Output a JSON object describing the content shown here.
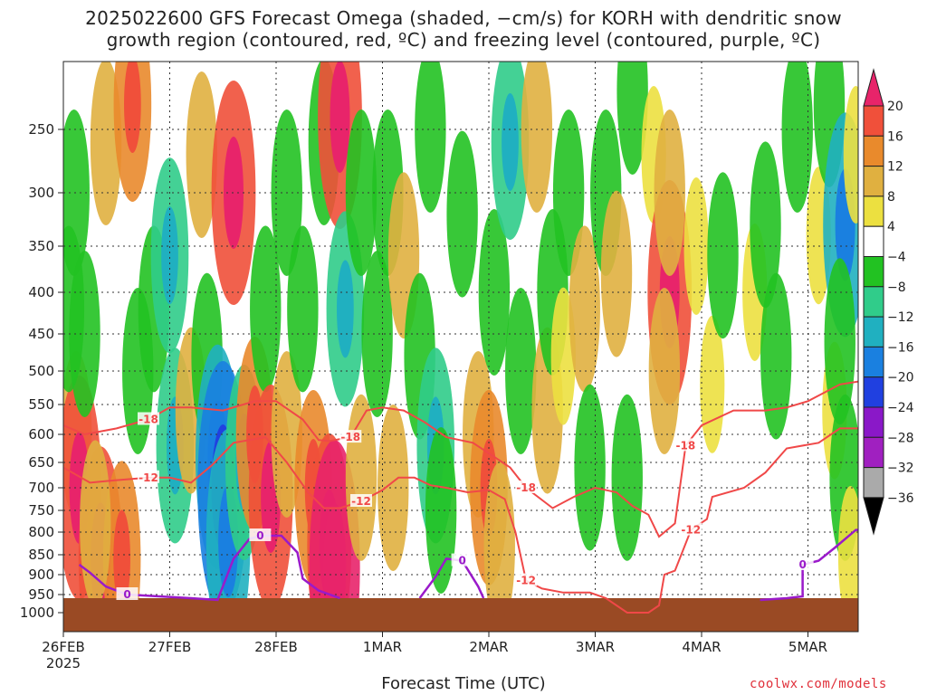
{
  "title_line1": "2025022600 GFS Forecast Omega (shaded, −cm/s) for KORH with dendritic snow",
  "title_line2": "growth region (contoured, red, ºC) and freezing level (contoured, purple, ºC)",
  "xlabel": "Forecast Time (UTC)",
  "brand": "coolwx.com/models",
  "chart_data": {
    "type": "heatmap",
    "x_axis": {
      "ticks": [
        "26FEB",
        "27FEB",
        "28FEB",
        "1MAR",
        "2MAR",
        "3MAR",
        "4MAR",
        "5MAR"
      ],
      "tick_days": [
        0,
        1,
        2,
        3,
        4,
        5,
        6,
        7
      ],
      "year_label": "2025",
      "range_days": [
        0,
        7.5
      ]
    },
    "y_axis": {
      "ticks": [
        250,
        300,
        350,
        400,
        450,
        500,
        550,
        600,
        650,
        700,
        750,
        800,
        850,
        900,
        950,
        1000
      ],
      "range_hpa": [
        200,
        1025
      ],
      "inverted": true
    },
    "grid": true,
    "colorbar": {
      "levels": [
        20,
        16,
        12,
        8,
        4,
        -4,
        -8,
        -12,
        -16,
        -20,
        -24,
        -28,
        -32,
        -36
      ],
      "colors": [
        "#e8246a",
        "#f0503a",
        "#e98a2c",
        "#e0b040",
        "#ece040",
        "#ffffff",
        "#22c222",
        "#30cc8a",
        "#20b0c0",
        "#1a80e0",
        "#2040e0",
        "#8a18c8",
        "#a020c0",
        "#aaaaaa",
        "#000000"
      ]
    },
    "omega_cells": [
      {
        "day": 0.12,
        "p": 600,
        "v": 8
      },
      {
        "day": 0.15,
        "p": 700,
        "v": 16
      },
      {
        "day": 0.35,
        "p": 860,
        "v": 16
      },
      {
        "day": 0.55,
        "p": 860,
        "v": 12
      },
      {
        "day": 0.3,
        "p": 780,
        "v": 8
      },
      {
        "day": 0.05,
        "p": 420,
        "v": -8
      },
      {
        "day": 0.1,
        "p": 300,
        "v": -8
      },
      {
        "day": 0.2,
        "p": 450,
        "v": -8
      },
      {
        "day": 0.4,
        "p": 260,
        "v": 8
      },
      {
        "day": 0.65,
        "p": 230,
        "v": 12
      },
      {
        "day": 0.7,
        "p": 500,
        "v": -8
      },
      {
        "day": 0.85,
        "p": 420,
        "v": -8
      },
      {
        "day": 1.0,
        "p": 360,
        "v": -12
      },
      {
        "day": 1.05,
        "p": 620,
        "v": -12
      },
      {
        "day": 1.2,
        "p": 560,
        "v": 8
      },
      {
        "day": 1.3,
        "p": 270,
        "v": 8
      },
      {
        "day": 1.35,
        "p": 480,
        "v": -8
      },
      {
        "day": 1.45,
        "p": 640,
        "v": -16
      },
      {
        "day": 1.5,
        "p": 700,
        "v": -20
      },
      {
        "day": 1.6,
        "p": 300,
        "v": 16
      },
      {
        "day": 1.55,
        "p": 820,
        "v": -16
      },
      {
        "day": 1.7,
        "p": 650,
        "v": -12
      },
      {
        "day": 1.8,
        "p": 600,
        "v": 12
      },
      {
        "day": 1.9,
        "p": 420,
        "v": -8
      },
      {
        "day": 1.95,
        "p": 720,
        "v": 16
      },
      {
        "day": 2.1,
        "p": 600,
        "v": 8
      },
      {
        "day": 2.1,
        "p": 300,
        "v": -8
      },
      {
        "day": 2.25,
        "p": 420,
        "v": -8
      },
      {
        "day": 2.35,
        "p": 700,
        "v": 12
      },
      {
        "day": 2.45,
        "p": 260,
        "v": -8
      },
      {
        "day": 2.5,
        "p": 830,
        "v": 16
      },
      {
        "day": 2.55,
        "p": 880,
        "v": 20
      },
      {
        "day": 2.6,
        "p": 240,
        "v": 16
      },
      {
        "day": 2.65,
        "p": 420,
        "v": -12
      },
      {
        "day": 2.8,
        "p": 300,
        "v": -8
      },
      {
        "day": 2.8,
        "p": 680,
        "v": 8
      },
      {
        "day": 2.95,
        "p": 450,
        "v": -8
      },
      {
        "day": 3.05,
        "p": 300,
        "v": -8
      },
      {
        "day": 3.1,
        "p": 700,
        "v": 8
      },
      {
        "day": 3.2,
        "p": 360,
        "v": 8
      },
      {
        "day": 3.35,
        "p": 480,
        "v": -8
      },
      {
        "day": 3.45,
        "p": 250,
        "v": -8
      },
      {
        "day": 3.5,
        "p": 620,
        "v": -12
      },
      {
        "day": 3.55,
        "p": 750,
        "v": -8
      },
      {
        "day": 3.75,
        "p": 320,
        "v": -8
      },
      {
        "day": 3.9,
        "p": 600,
        "v": 8
      },
      {
        "day": 4.0,
        "p": 700,
        "v": 12
      },
      {
        "day": 4.05,
        "p": 400,
        "v": -8
      },
      {
        "day": 4.1,
        "p": 830,
        "v": 8
      },
      {
        "day": 4.2,
        "p": 260,
        "v": -12
      },
      {
        "day": 4.3,
        "p": 500,
        "v": -8
      },
      {
        "day": 4.45,
        "p": 250,
        "v": 8
      },
      {
        "day": 4.55,
        "p": 560,
        "v": 8
      },
      {
        "day": 4.6,
        "p": 400,
        "v": -8
      },
      {
        "day": 4.75,
        "p": 300,
        "v": -8
      },
      {
        "day": 4.7,
        "p": 480,
        "v": 4
      },
      {
        "day": 4.9,
        "p": 420,
        "v": 8
      },
      {
        "day": 4.95,
        "p": 660,
        "v": -8
      },
      {
        "day": 5.1,
        "p": 300,
        "v": -8
      },
      {
        "day": 5.2,
        "p": 380,
        "v": 8
      },
      {
        "day": 5.3,
        "p": 680,
        "v": -8
      },
      {
        "day": 5.35,
        "p": 220,
        "v": -8
      },
      {
        "day": 5.55,
        "p": 270,
        "v": 4
      },
      {
        "day": 5.7,
        "p": 400,
        "v": 16
      },
      {
        "day": 5.7,
        "p": 300,
        "v": 8
      },
      {
        "day": 5.65,
        "p": 500,
        "v": 8
      },
      {
        "day": 5.95,
        "p": 350,
        "v": 4
      },
      {
        "day": 6.1,
        "p": 520,
        "v": 4
      },
      {
        "day": 6.2,
        "p": 360,
        "v": -8
      },
      {
        "day": 6.5,
        "p": 400,
        "v": 4
      },
      {
        "day": 6.6,
        "p": 330,
        "v": -8
      },
      {
        "day": 6.7,
        "p": 480,
        "v": -8
      },
      {
        "day": 6.9,
        "p": 250,
        "v": -8
      },
      {
        "day": 7.1,
        "p": 340,
        "v": 4
      },
      {
        "day": 7.2,
        "p": 230,
        "v": -8
      },
      {
        "day": 7.25,
        "p": 560,
        "v": 4
      },
      {
        "day": 7.35,
        "p": 330,
        "v": -16
      },
      {
        "day": 7.35,
        "p": 680,
        "v": -8
      },
      {
        "day": 7.45,
        "p": 270,
        "v": 4
      },
      {
        "day": 7.4,
        "p": 850,
        "v": 4
      },
      {
        "day": 7.3,
        "p": 460,
        "v": -8
      }
    ],
    "dgz_contours": [
      {
        "label": "-18",
        "level": -18,
        "points": [
          [
            0,
            585
          ],
          [
            0.2,
            600
          ],
          [
            0.5,
            590
          ],
          [
            0.8,
            575
          ],
          [
            1.0,
            555
          ],
          [
            1.2,
            555
          ],
          [
            1.5,
            560
          ],
          [
            1.8,
            545
          ],
          [
            2.0,
            545
          ],
          [
            2.25,
            575
          ],
          [
            2.4,
            610
          ],
          [
            2.5,
            612
          ],
          [
            2.7,
            605
          ],
          [
            2.85,
            560
          ],
          [
            3.0,
            555
          ],
          [
            3.2,
            560
          ],
          [
            3.4,
            580
          ],
          [
            3.6,
            605
          ],
          [
            3.85,
            615
          ],
          [
            4.05,
            640
          ],
          [
            4.2,
            660
          ],
          [
            4.35,
            700
          ],
          [
            4.6,
            745
          ],
          [
            4.8,
            720
          ],
          [
            5.0,
            700
          ],
          [
            5.2,
            710
          ],
          [
            5.35,
            740
          ],
          [
            5.5,
            760
          ],
          [
            5.6,
            810
          ],
          [
            5.75,
            780
          ],
          [
            5.85,
            620
          ],
          [
            6.0,
            585
          ],
          [
            6.3,
            560
          ],
          [
            6.6,
            560
          ],
          [
            6.8,
            555
          ],
          [
            7.0,
            545
          ],
          [
            7.3,
            520
          ],
          [
            7.5,
            515
          ]
        ]
      },
      {
        "label": "-12",
        "level": -12,
        "points": [
          [
            0,
            660
          ],
          [
            0.25,
            690
          ],
          [
            0.5,
            685
          ],
          [
            0.8,
            680
          ],
          [
            1.0,
            680
          ],
          [
            1.2,
            690
          ],
          [
            1.4,
            655
          ],
          [
            1.6,
            615
          ],
          [
            1.9,
            605
          ],
          [
            2.1,
            650
          ],
          [
            2.3,
            710
          ],
          [
            2.45,
            745
          ],
          [
            2.6,
            745
          ],
          [
            2.8,
            730
          ],
          [
            3.0,
            705
          ],
          [
            3.15,
            680
          ],
          [
            3.3,
            680
          ],
          [
            3.45,
            695
          ],
          [
            3.6,
            700
          ],
          [
            3.8,
            710
          ],
          [
            4.0,
            705
          ],
          [
            4.15,
            725
          ],
          [
            4.25,
            800
          ],
          [
            4.35,
            915
          ],
          [
            4.5,
            935
          ],
          [
            4.7,
            945
          ],
          [
            4.95,
            945
          ],
          [
            5.1,
            960
          ],
          [
            5.3,
            1000
          ],
          [
            5.5,
            1000
          ],
          [
            5.6,
            980
          ],
          [
            5.65,
            900
          ],
          [
            5.75,
            890
          ],
          [
            5.9,
            795
          ],
          [
            6.05,
            770
          ],
          [
            6.1,
            720
          ],
          [
            6.4,
            700
          ],
          [
            6.6,
            670
          ],
          [
            6.8,
            625
          ],
          [
            7.1,
            615
          ],
          [
            7.3,
            590
          ],
          [
            7.5,
            590
          ]
        ]
      }
    ],
    "freezing_contours": [
      {
        "label": "0",
        "points": [
          [
            0.15,
            875
          ],
          [
            0.25,
            895
          ],
          [
            0.4,
            930
          ],
          [
            0.6,
            950
          ],
          [
            0.9,
            955
          ],
          [
            1.2,
            960
          ],
          [
            1.45,
            965
          ],
          [
            1.6,
            860
          ],
          [
            1.75,
            815
          ],
          [
            1.85,
            808
          ],
          [
            2.05,
            808
          ],
          [
            2.2,
            845
          ],
          [
            2.25,
            910
          ],
          [
            2.4,
            940
          ],
          [
            2.6,
            960
          ]
        ]
      },
      {
        "label": "0",
        "points": [
          [
            3.35,
            960
          ],
          [
            3.5,
            905
          ],
          [
            3.6,
            860
          ],
          [
            3.75,
            865
          ],
          [
            3.9,
            930
          ],
          [
            3.95,
            960
          ]
        ]
      },
      {
        "label": "0",
        "points": [
          [
            6.55,
            965
          ],
          [
            6.8,
            960
          ],
          [
            6.95,
            955
          ],
          [
            6.95,
            875
          ],
          [
            7.1,
            865
          ],
          [
            7.25,
            835
          ],
          [
            7.45,
            795
          ],
          [
            7.5,
            795
          ]
        ]
      }
    ],
    "terrain_pressure": 980
  }
}
